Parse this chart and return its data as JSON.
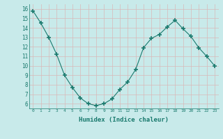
{
  "x": [
    0,
    1,
    2,
    3,
    4,
    5,
    6,
    7,
    8,
    9,
    10,
    11,
    12,
    13,
    14,
    15,
    16,
    17,
    18,
    19,
    20,
    21,
    22,
    23
  ],
  "y": [
    15.8,
    14.5,
    13.0,
    11.2,
    9.0,
    7.7,
    6.6,
    6.0,
    5.8,
    6.0,
    6.5,
    7.5,
    8.3,
    9.6,
    11.9,
    12.9,
    13.3,
    14.1,
    14.8,
    13.9,
    13.1,
    11.9,
    11.0,
    10.0
  ],
  "xlabel": "Humidex (Indice chaleur)",
  "ylim": [
    5.5,
    16.5
  ],
  "xlim": [
    -0.5,
    23.5
  ],
  "yticks": [
    6,
    7,
    8,
    9,
    10,
    11,
    12,
    13,
    14,
    15,
    16
  ],
  "xticks": [
    0,
    1,
    2,
    3,
    4,
    5,
    6,
    7,
    8,
    9,
    10,
    11,
    12,
    13,
    14,
    15,
    16,
    17,
    18,
    19,
    20,
    21,
    22,
    23
  ],
  "xtick_labels": [
    "0",
    "1",
    "2",
    "3",
    "4",
    "5",
    "6",
    "7",
    "8",
    "9",
    "10",
    "11",
    "12",
    "13",
    "14",
    "15",
    "16",
    "17",
    "18",
    "19",
    "20",
    "21",
    "22",
    "23"
  ],
  "line_color": "#1a7a6e",
  "marker_color": "#1a7a6e",
  "bg_color": "#c8eaea",
  "grid_color": "#b8d8d8",
  "label_color": "#1a7a6e"
}
